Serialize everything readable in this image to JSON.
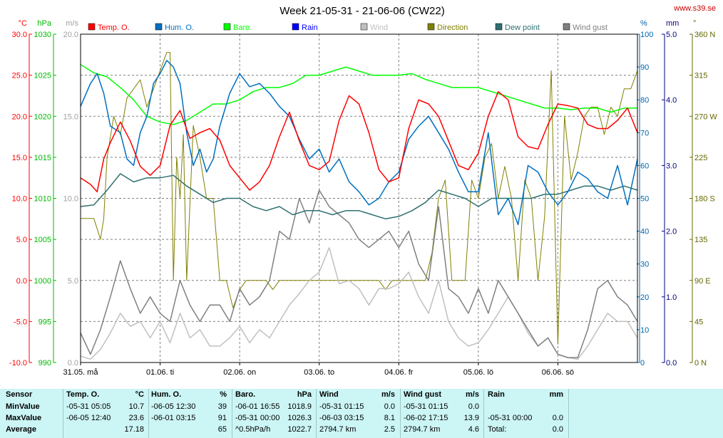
{
  "title": "Week 21-05-31 - 21-06-06 (CW22)",
  "site": "www.s39.se",
  "chart_data": {
    "type": "line",
    "title": "Week 21-05-31 - 21-06-06 (CW22)",
    "x_range_hours": [
      0,
      168
    ],
    "x_ticks": [
      {
        "h": 0,
        "label": "31.05. må"
      },
      {
        "h": 24,
        "label": "01.06. ti"
      },
      {
        "h": 48,
        "label": "02.06. on"
      },
      {
        "h": 72,
        "label": "03.06. to"
      },
      {
        "h": 96,
        "label": "04.06. fr"
      },
      {
        "h": 120,
        "label": "05.06. lö"
      },
      {
        "h": 144,
        "label": "06.06. sö"
      }
    ],
    "axes": {
      "temp": {
        "unit": "°C",
        "min": -10,
        "max": 30,
        "ticks": [
          "-10.0",
          "-5.0",
          "0.0",
          "5.0",
          "10.0",
          "15.0",
          "20.0",
          "25.0",
          "30.0"
        ],
        "color": "#ff0000"
      },
      "baro": {
        "unit": "hPa",
        "min": 990,
        "max": 1030,
        "ticks": [
          "990",
          "995",
          "1000",
          "1005",
          "1010",
          "1015",
          "1020",
          "1025",
          "1030"
        ],
        "color": "#00bb00"
      },
      "wind": {
        "unit": "m/s",
        "min": 0,
        "max": 20,
        "ticks": [
          "0.0",
          "5.0",
          "10.0",
          "15.0",
          "20.0"
        ],
        "color": "#a0a0a0"
      },
      "hum": {
        "unit": "%",
        "min": 0,
        "max": 100,
        "ticks": [
          "0",
          "10",
          "20",
          "30",
          "40",
          "50",
          "60",
          "70",
          "80",
          "90",
          "100"
        ],
        "color": "#0066aa"
      },
      "rain": {
        "unit": "mm",
        "min": 0,
        "max": 5,
        "ticks": [
          "0.0",
          "1.0",
          "2.0",
          "3.0",
          "4.0",
          "5.0"
        ],
        "color": "#000080"
      },
      "dir": {
        "unit": "°",
        "min": 0,
        "max": 360,
        "ticks": [
          "0 N",
          "45",
          "90 E",
          "135",
          "180 S",
          "225",
          "270 W",
          "315",
          "360 N"
        ],
        "color": "#666600"
      }
    },
    "legend": [
      {
        "name": "Temp. O.",
        "color": "#ff0000"
      },
      {
        "name": "Hum. O.",
        "color": "#0070c0"
      },
      {
        "name": "Baro.",
        "color": "#00ff00"
      },
      {
        "name": "Rain",
        "color": "#0000ff"
      },
      {
        "name": "Wind",
        "color": "#c0c0c0"
      },
      {
        "name": "Direction",
        "color": "#808000"
      },
      {
        "name": "Dew point",
        "color": "#2f7070"
      },
      {
        "name": "Wind gust",
        "color": "#808080"
      }
    ],
    "series": [
      {
        "name": "Temp. O.",
        "axis": "temp",
        "color": "#ff0000",
        "width": 1.5,
        "x": [
          0,
          3,
          5,
          7,
          9,
          12,
          15,
          18,
          21,
          24,
          27,
          30,
          33,
          36,
          39,
          42,
          45,
          48,
          51,
          54,
          57,
          60,
          63,
          66,
          69,
          72,
          75,
          78,
          81,
          84,
          87,
          90,
          93,
          96,
          99,
          102,
          105,
          108,
          111,
          114,
          117,
          120,
          123,
          126,
          129,
          132,
          135,
          138,
          141,
          144,
          147,
          150,
          153,
          156,
          159,
          162,
          165,
          168
        ],
        "y": [
          12.5,
          11.7,
          10.8,
          14.8,
          16.8,
          19.3,
          17.0,
          13.9,
          12.8,
          14.0,
          18.9,
          20.7,
          17.3,
          18.0,
          18.5,
          17.1,
          14.0,
          12.5,
          11.0,
          12.0,
          14.0,
          17.5,
          20.5,
          17.0,
          14.0,
          13.5,
          14.5,
          19.5,
          22.5,
          21.5,
          18.0,
          13.5,
          12.0,
          12.5,
          18.5,
          22.0,
          21.5,
          20.0,
          17.0,
          14.0,
          13.5,
          15.5,
          20.0,
          23.0,
          22.0,
          17.5,
          16.3,
          16.0,
          19.0,
          21.5,
          21.3,
          21.0,
          19.0,
          18.5,
          18.5,
          19.5,
          21.0,
          18.0
        ]
      },
      {
        "name": "Hum. O.",
        "axis": "hum",
        "color": "#0070c0",
        "width": 1.5,
        "x": [
          0,
          3,
          5,
          7,
          9,
          12,
          14,
          16,
          18,
          20,
          22,
          24,
          26,
          28,
          30,
          32,
          34,
          36,
          38,
          40,
          42,
          45,
          48,
          51,
          54,
          57,
          60,
          63,
          66,
          69,
          72,
          75,
          78,
          81,
          84,
          87,
          90,
          93,
          96,
          99,
          102,
          105,
          108,
          111,
          114,
          117,
          120,
          123,
          126,
          129,
          132,
          135,
          138,
          141,
          144,
          147,
          150,
          153,
          156,
          159,
          162,
          165,
          168
        ],
        "y": [
          78,
          85,
          88,
          82,
          72,
          70,
          62,
          60,
          70,
          75,
          85,
          88,
          92,
          90,
          85,
          70,
          60,
          65,
          58,
          62,
          72,
          82,
          88,
          84,
          85,
          82,
          78,
          75,
          68,
          62,
          65,
          58,
          62,
          55,
          52,
          48,
          50,
          55,
          58,
          68,
          72,
          75,
          70,
          65,
          58,
          52,
          52,
          70,
          45,
          50,
          42,
          60,
          58,
          52,
          48,
          52,
          58,
          56,
          52,
          50,
          60,
          48,
          62
        ]
      },
      {
        "name": "Baro.",
        "axis": "baro",
        "color": "#00ff00",
        "width": 1.5,
        "x": [
          0,
          4,
          8,
          12,
          16,
          20,
          24,
          28,
          32,
          36,
          40,
          44,
          48,
          52,
          56,
          60,
          64,
          68,
          72,
          76,
          80,
          84,
          88,
          92,
          96,
          100,
          104,
          108,
          112,
          116,
          120,
          124,
          128,
          132,
          136,
          140,
          144,
          148,
          152,
          156,
          160,
          164,
          168
        ],
        "y": [
          1026.3,
          1025.3,
          1024.8,
          1023.5,
          1022.0,
          1020.0,
          1019.3,
          1019.0,
          1019.5,
          1020.5,
          1021.5,
          1021.5,
          1022.0,
          1023.0,
          1023.5,
          1023.5,
          1024.0,
          1025.0,
          1025.0,
          1025.5,
          1026.0,
          1025.5,
          1025.0,
          1025.0,
          1025.0,
          1025.2,
          1024.5,
          1024.0,
          1023.5,
          1023.5,
          1023.5,
          1023.0,
          1022.5,
          1022.0,
          1021.5,
          1021.0,
          1021.0,
          1020.8,
          1021.0,
          1021.0,
          1020.5,
          1021.0,
          1021.0
        ]
      },
      {
        "name": "Dew point",
        "axis": "temp",
        "color": "#2f7070",
        "width": 1.5,
        "x": [
          0,
          4,
          8,
          12,
          16,
          20,
          24,
          28,
          32,
          36,
          40,
          44,
          48,
          52,
          56,
          60,
          64,
          68,
          72,
          76,
          80,
          84,
          88,
          92,
          96,
          100,
          104,
          108,
          112,
          116,
          120,
          124,
          128,
          132,
          136,
          140,
          144,
          148,
          152,
          156,
          160,
          164,
          168
        ],
        "y": [
          9.0,
          9.2,
          11.0,
          13.0,
          12.0,
          12.5,
          12.5,
          12.8,
          11.5,
          10.5,
          9.5,
          10.0,
          10.0,
          9.0,
          8.5,
          9.0,
          8.0,
          8.5,
          8.5,
          8.0,
          8.5,
          8.5,
          8.0,
          7.5,
          7.8,
          8.5,
          9.5,
          11.0,
          10.5,
          10.0,
          9.0,
          10.0,
          10.0,
          10.0,
          10.0,
          10.5,
          10.5,
          11.0,
          11.5,
          11.5,
          11.0,
          11.5,
          11.0
        ]
      },
      {
        "name": "Wind",
        "axis": "wind",
        "color": "#c0c0c0",
        "width": 1.5,
        "x": [
          0,
          3,
          6,
          9,
          12,
          15,
          18,
          21,
          24,
          27,
          30,
          33,
          36,
          39,
          42,
          45,
          48,
          51,
          54,
          57,
          60,
          63,
          66,
          69,
          72,
          75,
          78,
          81,
          84,
          87,
          90,
          93,
          96,
          99,
          102,
          105,
          108,
          111,
          114,
          117,
          120,
          123,
          126,
          129,
          132,
          135,
          138,
          141,
          144,
          147,
          150,
          153,
          156,
          159,
          162,
          165,
          168
        ],
        "y": [
          0.4,
          0.2,
          0.8,
          1.8,
          3.0,
          2.2,
          2.5,
          1.5,
          2.5,
          1.2,
          3.0,
          1.5,
          2.0,
          1.0,
          1.0,
          1.5,
          2.2,
          1.2,
          2.0,
          1.5,
          2.5,
          3.5,
          4.2,
          5.0,
          5.5,
          7.0,
          4.8,
          5.0,
          4.5,
          3.5,
          4.5,
          4.5,
          4.8,
          5.5,
          4.0,
          3.0,
          5.0,
          2.5,
          1.5,
          1.0,
          1.2,
          2.0,
          3.0,
          4.0,
          3.0,
          1.8,
          1.0,
          1.5,
          0.5,
          0.3,
          0.2,
          1.0,
          2.0,
          3.0,
          2.5,
          2.5,
          1.5
        ]
      },
      {
        "name": "Wind gust",
        "axis": "wind",
        "color": "#808080",
        "width": 1.5,
        "x": [
          0,
          3,
          6,
          9,
          12,
          15,
          18,
          21,
          24,
          27,
          30,
          33,
          36,
          39,
          42,
          45,
          48,
          51,
          54,
          57,
          60,
          63,
          66,
          69,
          72,
          75,
          78,
          81,
          84,
          87,
          90,
          93,
          96,
          99,
          102,
          105,
          108,
          111,
          114,
          117,
          120,
          123,
          126,
          129,
          132,
          135,
          138,
          141,
          144,
          147,
          150,
          153,
          156,
          159,
          162,
          165,
          168
        ],
        "y": [
          1.8,
          0.5,
          2.0,
          4.0,
          6.2,
          4.5,
          3.0,
          4.0,
          3.0,
          2.5,
          5.0,
          3.5,
          2.5,
          3.5,
          3.5,
          2.5,
          4.5,
          3.5,
          4.0,
          5.0,
          8.0,
          7.5,
          10.0,
          8.5,
          10.5,
          9.5,
          9.0,
          8.5,
          7.5,
          7.0,
          7.5,
          8.0,
          7.0,
          8.0,
          6.0,
          5.0,
          9.5,
          4.5,
          4.0,
          3.0,
          4.5,
          3.0,
          5.0,
          4.0,
          3.0,
          2.0,
          1.0,
          1.5,
          0.5,
          0.3,
          0.3,
          2.0,
          4.5,
          5.0,
          4.0,
          3.5,
          2.5
        ]
      },
      {
        "name": "Direction",
        "axis": "dir",
        "color": "#808000",
        "width": 1,
        "x": [
          0,
          2,
          4,
          6,
          7,
          8,
          10,
          12,
          14,
          16,
          18,
          20,
          22,
          24,
          26,
          27,
          28,
          29,
          30,
          31,
          32,
          34,
          36,
          38,
          40,
          42,
          44,
          46,
          48,
          50,
          52,
          54,
          56,
          58,
          60,
          62,
          64,
          66,
          68,
          70,
          72,
          74,
          76,
          78,
          80,
          82,
          84,
          86,
          88,
          90,
          92,
          94,
          96,
          98,
          100,
          102,
          104,
          106,
          108,
          110,
          112,
          114,
          116,
          118,
          120,
          122,
          124,
          126,
          128,
          130,
          132,
          134,
          136,
          138,
          140,
          142,
          144,
          146,
          148,
          150,
          152,
          154,
          156,
          158,
          160,
          162,
          164,
          166,
          168
        ],
        "y": [
          158,
          158,
          158,
          135,
          158,
          225,
          270,
          250,
          290,
          300,
          310,
          280,
          300,
          320,
          340,
          340,
          90,
          225,
          180,
          250,
          90,
          260,
          225,
          180,
          180,
          90,
          90,
          60,
          80,
          90,
          90,
          90,
          90,
          80,
          90,
          90,
          90,
          90,
          90,
          90,
          90,
          90,
          90,
          90,
          90,
          90,
          90,
          90,
          90,
          90,
          80,
          90,
          90,
          90,
          90,
          90,
          90,
          120,
          180,
          200,
          90,
          90,
          90,
          200,
          180,
          225,
          240,
          180,
          215,
          180,
          90,
          200,
          180,
          90,
          160,
          320,
          20,
          270,
          200,
          230,
          270,
          280,
          280,
          250,
          280,
          270,
          300,
          300,
          320
        ]
      }
    ]
  },
  "stats": {
    "sensor_label": "Sensor",
    "min_label": "MinValue",
    "max_label": "MaxValue",
    "avg_label": "Average",
    "cols": [
      {
        "name": "Temp. O.",
        "unit": "°C",
        "min_time": "-05-31  05:05",
        "min_val": "10.7",
        "max_time": "-06-05  12:40",
        "max_val": "23.6",
        "avg_text": "",
        "avg_val": "17.18"
      },
      {
        "name": "Hum. O.",
        "unit": "%",
        "min_time": "-06-05  12:30",
        "min_val": "39",
        "max_time": "-06-01  03:15",
        "max_val": "91",
        "avg_text": "",
        "avg_val": "65"
      },
      {
        "name": "Baro.",
        "unit": "hPa",
        "min_time": "-06-01  16:55",
        "min_val": "1018.9",
        "max_time": "-05-31  00:00",
        "max_val": "1026.3",
        "avg_text": "^0.5hPa/h",
        "avg_val": "1022.7"
      },
      {
        "name": "Wind",
        "unit": "m/s",
        "min_time": "-05-31  01:15",
        "min_val": "0.0",
        "max_time": "-06-03  03:15",
        "max_val": "8.1",
        "avg_text": "2794.7 km",
        "avg_val": "2.5"
      },
      {
        "name": "Wind gust",
        "unit": "m/s",
        "min_time": "-05-31  01:15",
        "min_val": "0.0",
        "max_time": "-06-02  17:15",
        "max_val": "13.9",
        "avg_text": "2794.7 km",
        "avg_val": "4.6"
      },
      {
        "name": "Rain",
        "unit": "mm",
        "min_time": "",
        "min_val": "",
        "max_time": "-05-31  00:00",
        "max_val": "0.0",
        "avg_text": "Total:",
        "avg_val": "0.0"
      }
    ]
  }
}
